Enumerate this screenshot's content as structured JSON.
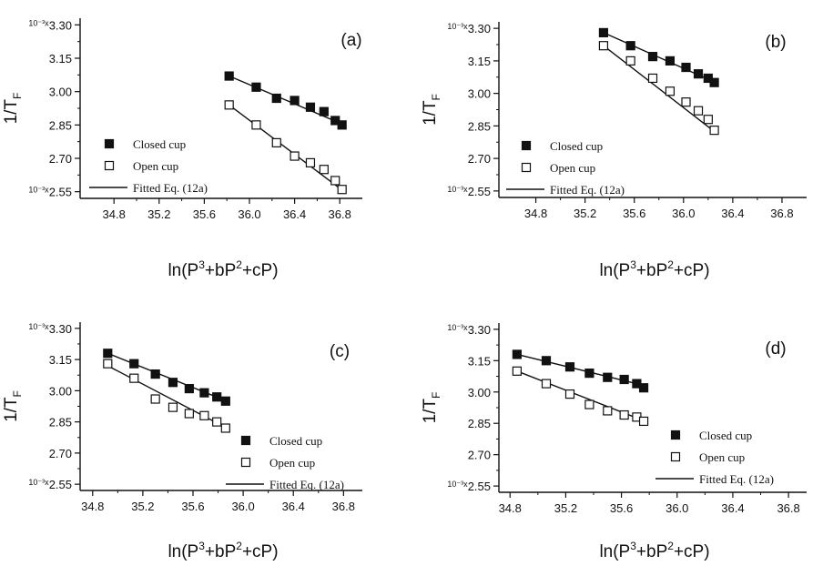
{
  "figure": {
    "background": "#ffffff",
    "ink": "#111111"
  },
  "chart_data": [
    {
      "type": "scatter",
      "panel_label": "(a)",
      "ylabel": "1/T",
      "ylabel_sub": "F",
      "xlabel": {
        "prefix": "ln(P",
        "sup1": "3",
        "mid": "+bP",
        "sup2": "2",
        "suffix": "+cP)"
      },
      "xlim": [
        34.5,
        37.0
      ],
      "ylim": [
        2.52,
        3.33
      ],
      "x_ticks": [
        "34.8",
        "35.2",
        "35.6",
        "36.0",
        "36.4",
        "36.8"
      ],
      "y_ticks": [
        "3.30",
        "3.15",
        "3.00",
        "2.85",
        "2.70",
        "2.55"
      ],
      "y_multiplier": "10⁻³x",
      "legend": {
        "closed": "Closed cup",
        "open": "Open cup",
        "fit": "Fitted Eq. (12a)"
      },
      "series": [
        {
          "name": "Closed cup",
          "marker": "filled-square",
          "x": [
            35.82,
            36.06,
            36.24,
            36.4,
            36.54,
            36.66,
            36.76,
            36.82
          ],
          "y": [
            3.07,
            3.02,
            2.97,
            2.96,
            2.93,
            2.91,
            2.87,
            2.85
          ],
          "fit": [
            [
              35.82,
              3.07
            ],
            [
              36.84,
              2.85
            ]
          ]
        },
        {
          "name": "Open cup",
          "marker": "open-square",
          "x": [
            35.82,
            36.06,
            36.24,
            36.4,
            36.54,
            36.66,
            36.76,
            36.82
          ],
          "y": [
            2.94,
            2.85,
            2.77,
            2.71,
            2.68,
            2.65,
            2.6,
            2.56
          ],
          "fit": [
            [
              35.82,
              2.94
            ],
            [
              36.84,
              2.55
            ]
          ]
        }
      ]
    },
    {
      "type": "scatter",
      "panel_label": "(b)",
      "ylabel": "1/T",
      "ylabel_sub": "F",
      "xlabel": {
        "prefix": "ln(P",
        "sup1": "3",
        "mid": "+bP",
        "sup2": "2",
        "suffix": "+cP)"
      },
      "xlim": [
        34.5,
        37.0
      ],
      "ylim": [
        2.52,
        3.33
      ],
      "x_ticks": [
        "34.8",
        "35.2",
        "35.6",
        "36.0",
        "36.4",
        "36.8"
      ],
      "y_ticks": [
        "3.30",
        "3.15",
        "3.00",
        "2.85",
        "2.70",
        "2.55"
      ],
      "y_multiplier": "10⁻³x",
      "legend": {
        "closed": "Closed cup",
        "open": "Open cup",
        "fit": "Fitted Eq. (12a)"
      },
      "series": [
        {
          "name": "Closed cup",
          "marker": "filled-square",
          "x": [
            35.35,
            35.57,
            35.75,
            35.89,
            36.02,
            36.12,
            36.2,
            36.25
          ],
          "y": [
            3.28,
            3.22,
            3.17,
            3.15,
            3.12,
            3.09,
            3.07,
            3.05
          ],
          "fit": [
            [
              35.35,
              3.28
            ],
            [
              36.26,
              3.05
            ]
          ]
        },
        {
          "name": "Open cup",
          "marker": "open-square",
          "x": [
            35.35,
            35.57,
            35.75,
            35.89,
            36.02,
            36.12,
            36.2,
            36.25
          ],
          "y": [
            3.22,
            3.15,
            3.07,
            3.01,
            2.96,
            2.92,
            2.88,
            2.83
          ],
          "fit": [
            [
              35.35,
              3.22
            ],
            [
              36.26,
              2.82
            ]
          ]
        }
      ]
    },
    {
      "type": "scatter",
      "panel_label": "(c)",
      "ylabel": "1/T",
      "ylabel_sub": "F",
      "xlabel": {
        "prefix": "ln(P",
        "sup1": "3",
        "mid": "+bP",
        "sup2": "2",
        "suffix": "+cP)"
      },
      "xlim": [
        34.7,
        36.95
      ],
      "ylim": [
        2.52,
        3.33
      ],
      "x_ticks": [
        "34.8",
        "35.2",
        "35.6",
        "36.0",
        "36.4",
        "36.8"
      ],
      "y_ticks": [
        "3.30",
        "3.15",
        "3.00",
        "2.85",
        "2.70",
        "2.55"
      ],
      "y_multiplier": "10⁻³x",
      "legend": {
        "closed": "Closed cup",
        "open": "Open cup",
        "fit": "Fitted Eq. (12a)"
      },
      "series": [
        {
          "name": "Closed cup",
          "marker": "filled-square",
          "x": [
            34.92,
            35.13,
            35.3,
            35.44,
            35.57,
            35.69,
            35.79,
            35.86
          ],
          "y": [
            3.18,
            3.13,
            3.08,
            3.04,
            3.01,
            2.99,
            2.97,
            2.95
          ],
          "fit": [
            [
              34.92,
              3.18
            ],
            [
              35.87,
              2.95
            ]
          ]
        },
        {
          "name": "Open cup",
          "marker": "open-square",
          "x": [
            34.92,
            35.13,
            35.3,
            35.44,
            35.57,
            35.69,
            35.79,
            35.86
          ],
          "y": [
            3.13,
            3.06,
            2.96,
            2.92,
            2.89,
            2.88,
            2.85,
            2.82
          ],
          "fit": [
            [
              34.92,
              3.12
            ],
            [
              35.87,
              2.82
            ]
          ]
        }
      ]
    },
    {
      "type": "scatter",
      "panel_label": "(d)",
      "ylabel": "1/T",
      "ylabel_sub": "F",
      "xlabel": {
        "prefix": "ln(P",
        "sup1": "3",
        "mid": "+bP",
        "sup2": "2",
        "suffix": "+cP)"
      },
      "xlim": [
        34.72,
        36.93
      ],
      "ylim": [
        2.52,
        3.33
      ],
      "x_ticks": [
        "34.8",
        "35.2",
        "35.6",
        "36.0",
        "36.4",
        "36.8"
      ],
      "y_ticks": [
        "3.30",
        "3.15",
        "3.00",
        "2.85",
        "2.70",
        "2.55"
      ],
      "y_multiplier": "10⁻³x",
      "legend": {
        "closed": "Closed cup",
        "open": "Open cup",
        "fit": "Fitted Eq. (12a)"
      },
      "series": [
        {
          "name": "Closed cup",
          "marker": "filled-square",
          "x": [
            34.85,
            35.06,
            35.23,
            35.37,
            35.5,
            35.62,
            35.71,
            35.76
          ],
          "y": [
            3.18,
            3.15,
            3.12,
            3.09,
            3.07,
            3.06,
            3.04,
            3.02
          ],
          "fit": [
            [
              34.85,
              3.18
            ],
            [
              35.77,
              3.03
            ]
          ]
        },
        {
          "name": "Open cup",
          "marker": "open-square",
          "x": [
            34.85,
            35.06,
            35.23,
            35.37,
            35.5,
            35.62,
            35.71,
            35.76
          ],
          "y": [
            3.1,
            3.04,
            2.99,
            2.94,
            2.91,
            2.89,
            2.88,
            2.86
          ],
          "fit": [
            [
              34.85,
              3.1
            ],
            [
              35.77,
              2.86
            ]
          ]
        }
      ]
    }
  ]
}
